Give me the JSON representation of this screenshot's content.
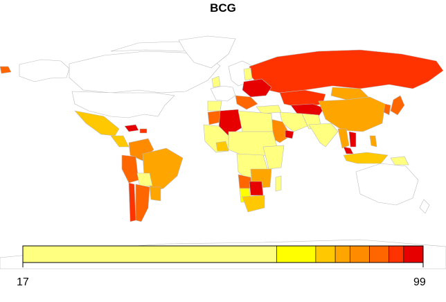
{
  "title": "BCG",
  "legend": {
    "min_label": "17",
    "max_label": "99",
    "bins": [
      {
        "from": 17,
        "to": 69,
        "color": "#FFFF80"
      },
      {
        "from": 69,
        "to": 77,
        "color": "#FFFF00"
      },
      {
        "from": 77,
        "to": 81,
        "color": "#FFC800"
      },
      {
        "from": 81,
        "to": 84,
        "color": "#FFA500"
      },
      {
        "from": 84,
        "to": 88,
        "color": "#FF8C00"
      },
      {
        "from": 88,
        "to": 92,
        "color": "#FF6600"
      },
      {
        "from": 92,
        "to": 95,
        "color": "#FF3300"
      },
      {
        "from": 95,
        "to": 99,
        "color": "#E60000"
      }
    ]
  },
  "colors": {
    "no_data": "#FFFFFF",
    "border": "#BBBBBB",
    "pale_yellow": "#FFFF80",
    "yellow": "#FFFF00",
    "gold": "#FFC800",
    "orange": "#FFA500",
    "dark_orange": "#FF8C00",
    "orange_red": "#FF6600",
    "red_orange": "#FF3300",
    "red": "#E60000"
  }
}
